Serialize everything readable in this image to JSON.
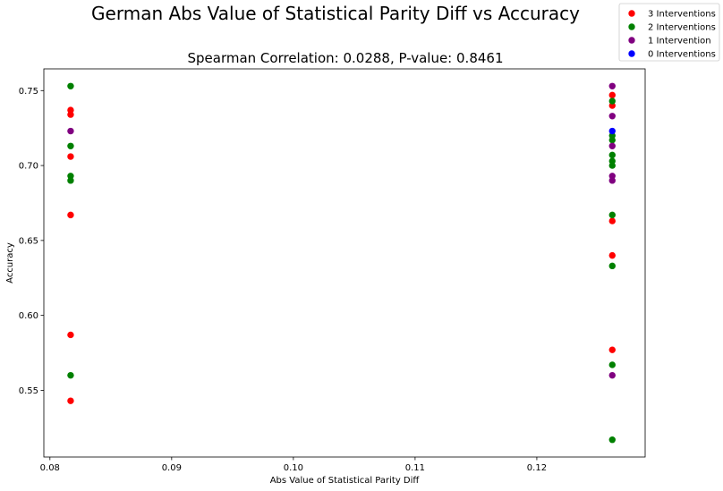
{
  "chart_data": {
    "type": "scatter",
    "title": "German Abs Value of Statistical Parity Diff vs Accuracy",
    "subtitle": "Spearman Correlation: 0.0288, P-value: 0.8461",
    "xlabel": "Abs Value of Statistical Parity Diff",
    "ylabel": "Accuracy",
    "xlim": [
      0.0795,
      0.1289
    ],
    "ylim": [
      0.5055,
      0.7645
    ],
    "xticks": [
      0.08,
      0.09,
      0.1,
      0.11,
      0.12
    ],
    "xtick_labels": [
      "0.08",
      "0.09",
      "0.10",
      "0.11",
      "0.12"
    ],
    "yticks": [
      0.55,
      0.6,
      0.65,
      0.7,
      0.75
    ],
    "ytick_labels": [
      "0.55",
      "0.60",
      "0.65",
      "0.70",
      "0.75"
    ],
    "grid": false,
    "legend_position": "top-right",
    "series": [
      {
        "name": "3 Interventions",
        "color": "#ff0000",
        "points": [
          [
            0.0817,
            0.737
          ],
          [
            0.0817,
            0.734
          ],
          [
            0.0817,
            0.706
          ],
          [
            0.0817,
            0.667
          ],
          [
            0.0817,
            0.587
          ],
          [
            0.0817,
            0.543
          ],
          [
            0.1262,
            0.747
          ],
          [
            0.1262,
            0.74
          ],
          [
            0.1262,
            0.663
          ],
          [
            0.1262,
            0.64
          ],
          [
            0.1262,
            0.577
          ]
        ]
      },
      {
        "name": "2 Interventions",
        "color": "#008000",
        "points": [
          [
            0.0817,
            0.753
          ],
          [
            0.0817,
            0.713
          ],
          [
            0.0817,
            0.693
          ],
          [
            0.0817,
            0.69
          ],
          [
            0.0817,
            0.56
          ],
          [
            0.1262,
            0.743
          ],
          [
            0.1262,
            0.72
          ],
          [
            0.1262,
            0.717
          ],
          [
            0.1262,
            0.707
          ],
          [
            0.1262,
            0.703
          ],
          [
            0.1262,
            0.7
          ],
          [
            0.1262,
            0.667
          ],
          [
            0.1262,
            0.633
          ],
          [
            0.1262,
            0.567
          ],
          [
            0.1262,
            0.517
          ]
        ]
      },
      {
        "name": "1 Intervention",
        "color": "#800080",
        "points": [
          [
            0.0817,
            0.723
          ],
          [
            0.1262,
            0.753
          ],
          [
            0.1262,
            0.733
          ],
          [
            0.1262,
            0.713
          ],
          [
            0.1262,
            0.693
          ],
          [
            0.1262,
            0.69
          ],
          [
            0.1262,
            0.56
          ]
        ]
      },
      {
        "name": "0 Interventions",
        "color": "#0000ff",
        "points": [
          [
            0.1262,
            0.723
          ]
        ]
      }
    ]
  }
}
